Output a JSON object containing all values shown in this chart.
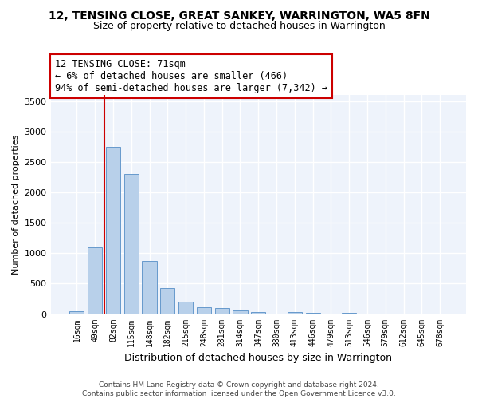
{
  "title": "12, TENSING CLOSE, GREAT SANKEY, WARRINGTON, WA5 8FN",
  "subtitle": "Size of property relative to detached houses in Warrington",
  "xlabel": "Distribution of detached houses by size in Warrington",
  "ylabel": "Number of detached properties",
  "categories": [
    "16sqm",
    "49sqm",
    "82sqm",
    "115sqm",
    "148sqm",
    "182sqm",
    "215sqm",
    "248sqm",
    "281sqm",
    "314sqm",
    "347sqm",
    "380sqm",
    "413sqm",
    "446sqm",
    "479sqm",
    "513sqm",
    "546sqm",
    "579sqm",
    "612sqm",
    "645sqm",
    "678sqm"
  ],
  "values": [
    50,
    1100,
    2750,
    2300,
    880,
    430,
    200,
    110,
    100,
    60,
    40,
    0,
    30,
    20,
    0,
    20,
    0,
    0,
    0,
    0,
    0
  ],
  "bar_color": "#b8d0ea",
  "bar_edge_color": "#6699cc",
  "background_color": "#eef3fb",
  "grid_color": "#ffffff",
  "annotation_text": "12 TENSING CLOSE: 71sqm\n← 6% of detached houses are smaller (466)\n94% of semi-detached houses are larger (7,342) →",
  "vline_color": "#cc0000",
  "vline_bin_index": 1,
  "ylim": [
    0,
    3600
  ],
  "yticks": [
    0,
    500,
    1000,
    1500,
    2000,
    2500,
    3000,
    3500
  ],
  "footer_line1": "Contains HM Land Registry data © Crown copyright and database right 2024.",
  "footer_line2": "Contains public sector information licensed under the Open Government Licence v3.0."
}
